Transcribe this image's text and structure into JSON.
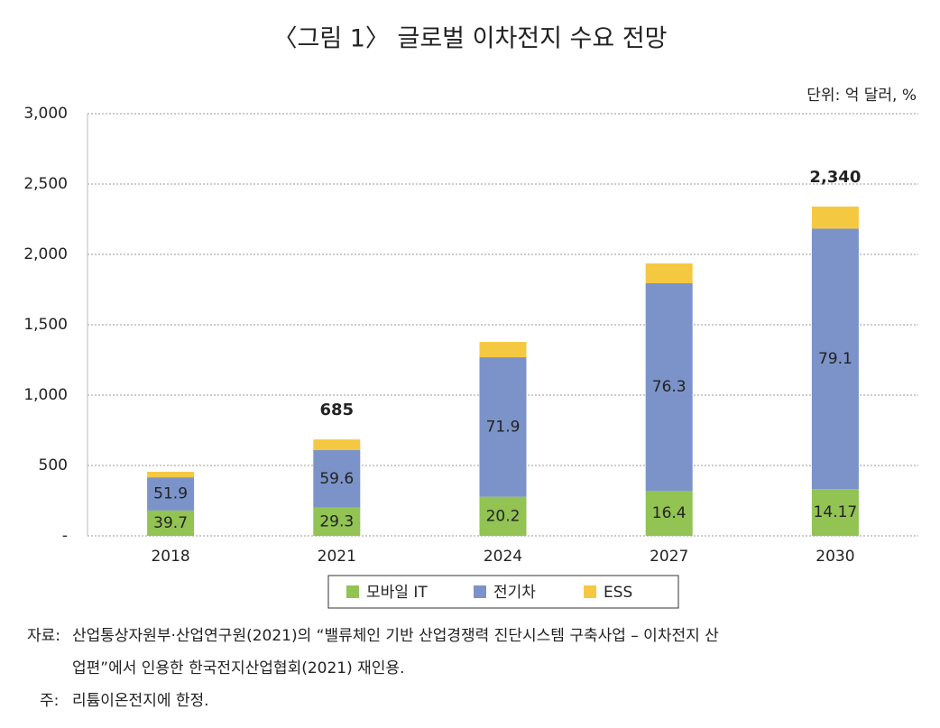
{
  "chart_data": {
    "type": "stacked_bar",
    "title": "〈그림 1〉 글로벌 이차전지 수요 전망",
    "unit": "단위: 억 달러, %",
    "categories": [
      "2018",
      "2021",
      "2024",
      "2027",
      "2030"
    ],
    "series": [
      {
        "name": "모바일 IT",
        "color": "#92c353",
        "values": [
          180,
          201,
          278,
          318,
          332
        ],
        "shares": [
          39.7,
          29.3,
          20.2,
          16.4,
          14.17
        ]
      },
      {
        "name": "전기차",
        "color": "#7b93c8",
        "values": [
          236,
          408,
          991,
          1477,
          1851
        ],
        "shares": [
          51.9,
          59.6,
          71.9,
          76.3,
          79.1
        ]
      },
      {
        "name": "ESS",
        "color": "#f5c842",
        "values": [
          39,
          76,
          109,
          141,
          157
        ]
      }
    ],
    "totals": [
      null,
      685,
      null,
      null,
      2340
    ],
    "total_labels": [
      null,
      "685",
      null,
      null,
      "2,340"
    ],
    "ylim": [
      0,
      3000
    ],
    "yticks": [
      {
        "value": 0,
        "label": "-"
      },
      500,
      {
        "value": 1000,
        "label": "1,000"
      },
      {
        "value": 1500,
        "label": "1,500"
      },
      {
        "value": 2000,
        "label": "2,000"
      },
      {
        "value": 2500,
        "label": "2,500"
      },
      {
        "value": 3000,
        "label": "3,000"
      }
    ],
    "grid": true,
    "source_label": "자료:",
    "source": [
      "산업통상자원부·산업연구원(2021)의 “밸류체인 기반 산업경쟁력 진단시스템 구축사업 – 이차전지 산",
      "업편”에서 인용한 한국전지산업협회(2021) 재인용."
    ],
    "note_label": "주:",
    "note": "리튬이온전지에 한정."
  }
}
